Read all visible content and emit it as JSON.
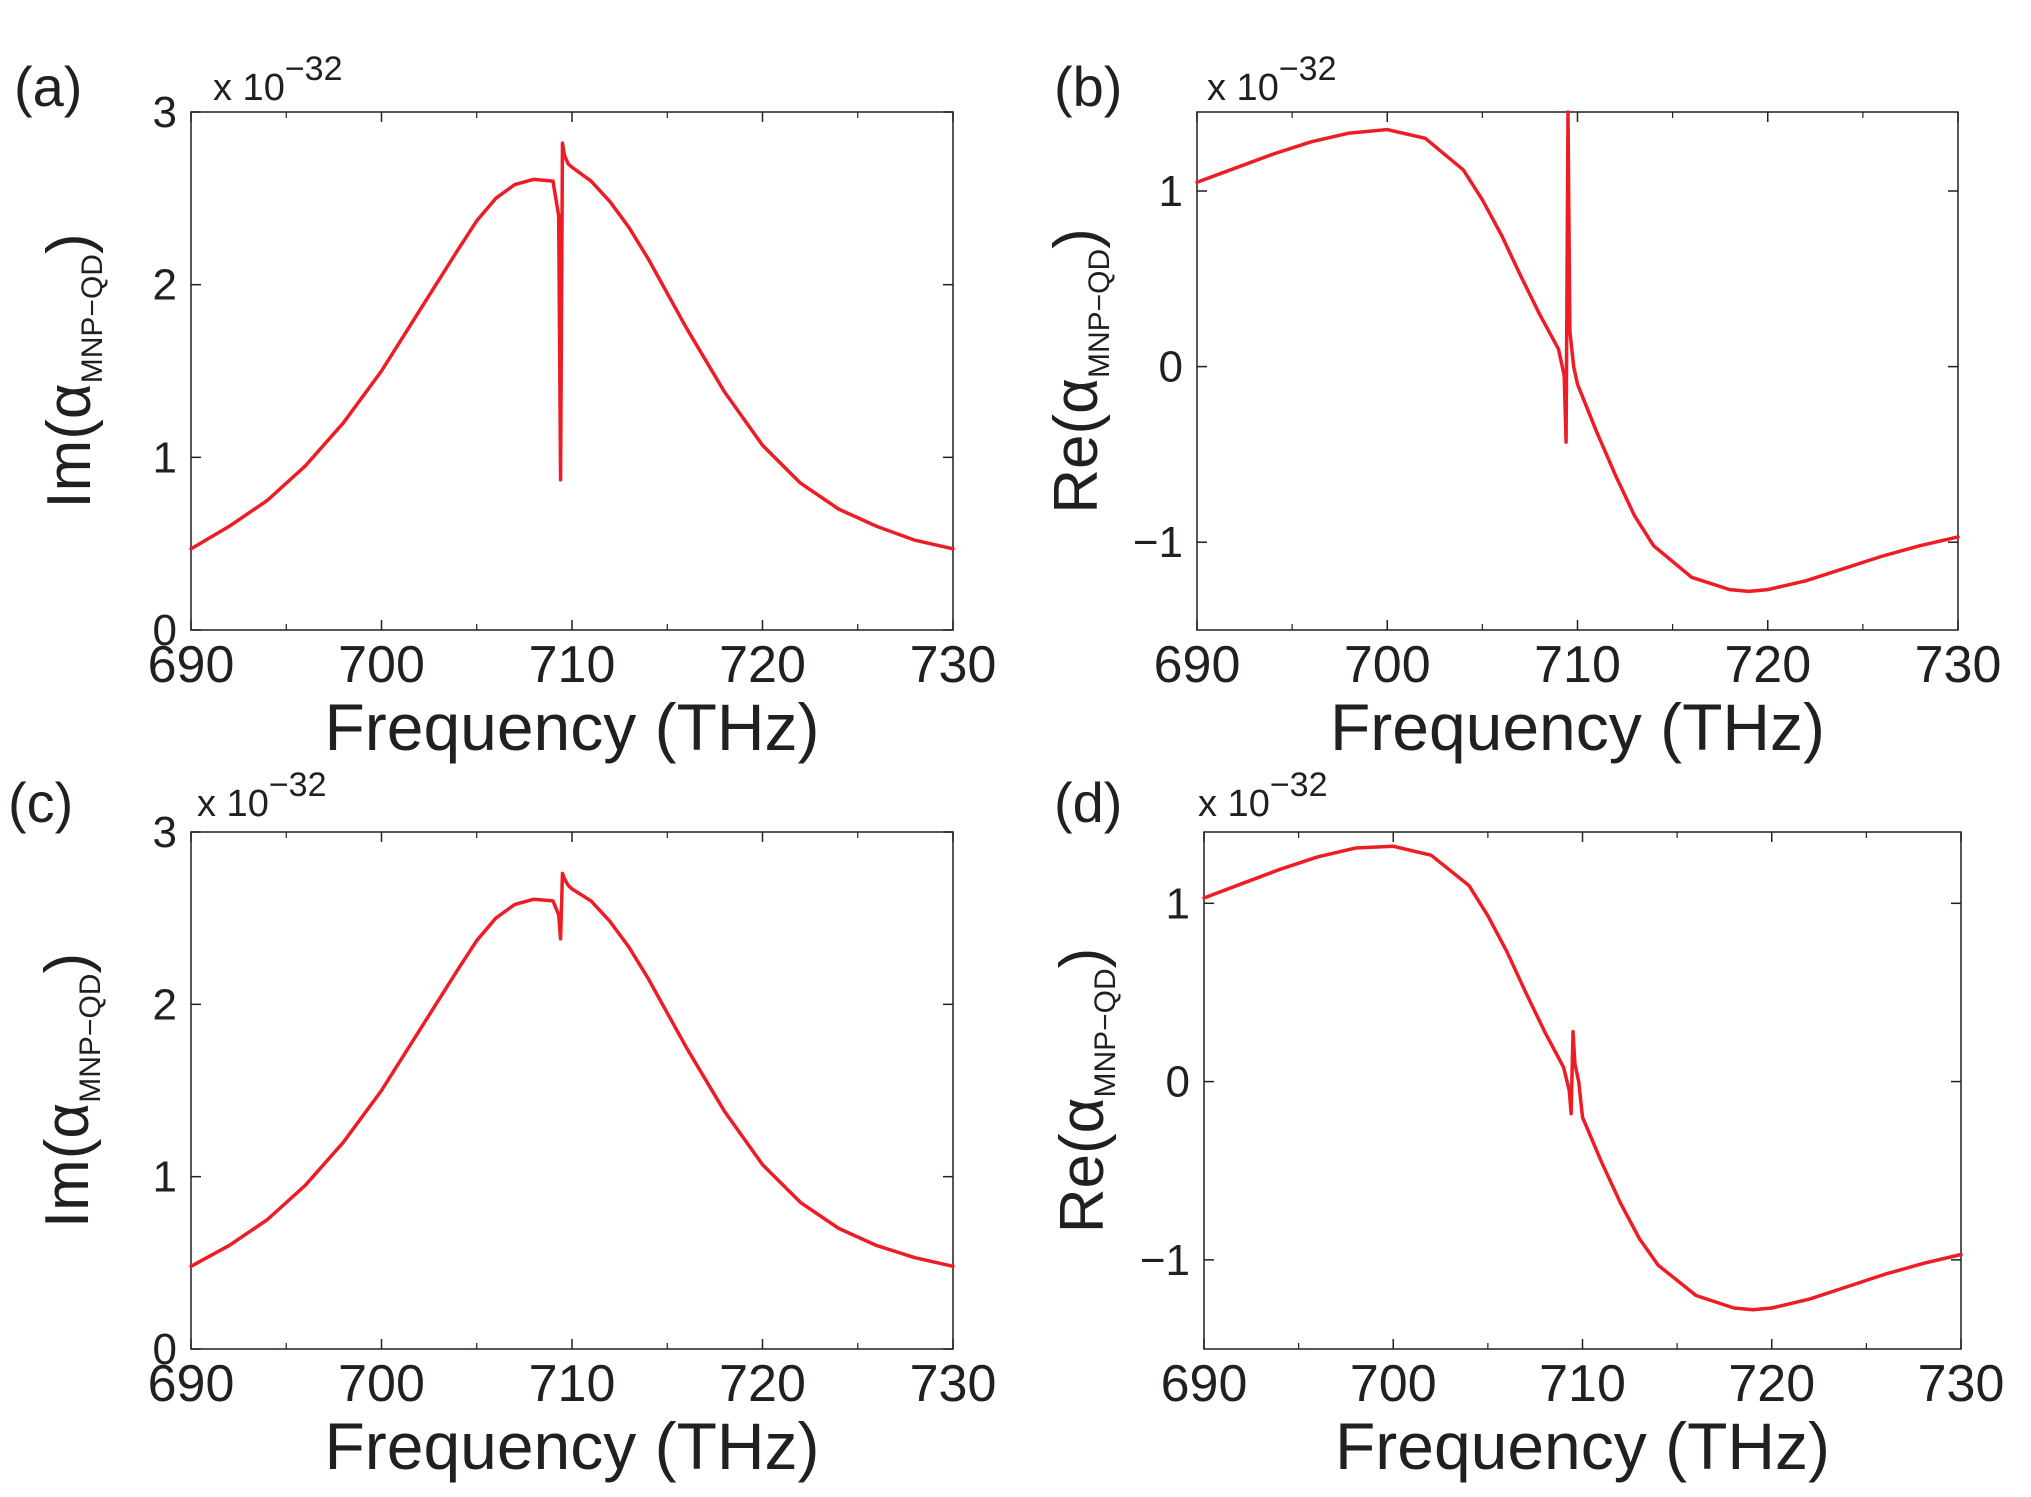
{
  "figure": {
    "line_color": "#ee1c25",
    "axis_color": "#231f20"
  },
  "chart_data": [
    {
      "type": "line",
      "panel_label": "(a)",
      "multiplier": {
        "base": "x 10",
        "exponent": "−32"
      },
      "xlabel": "Frequency (THz)",
      "ylabel": {
        "prefix": "Im(",
        "symbol": "α",
        "subscript": "MNP−QD",
        "suffix": ")"
      },
      "xlim": [
        690,
        730
      ],
      "ylim": [
        0,
        3
      ],
      "xticks": [
        690,
        700,
        710,
        720,
        730
      ],
      "yticks": [
        0,
        1,
        2,
        3
      ],
      "xtick_labels": [
        "690",
        "700",
        "710",
        "720",
        "730"
      ],
      "ytick_labels": [
        "0",
        "1",
        "2",
        "3"
      ],
      "grid": false,
      "series": [
        {
          "x": [
            690,
            692,
            694,
            696,
            698,
            700,
            702,
            704,
            705,
            706,
            707,
            708,
            709,
            709.3,
            709.4,
            709.5,
            709.6,
            709.8,
            710,
            711,
            712,
            713,
            714,
            716,
            718,
            720,
            722,
            724,
            726,
            728,
            730
          ],
          "y": [
            0.47,
            0.6,
            0.75,
            0.95,
            1.2,
            1.5,
            1.85,
            2.2,
            2.37,
            2.5,
            2.58,
            2.61,
            2.6,
            2.4,
            0.87,
            2.82,
            2.75,
            2.7,
            2.68,
            2.6,
            2.48,
            2.33,
            2.15,
            1.75,
            1.38,
            1.07,
            0.85,
            0.7,
            0.6,
            0.52,
            0.47
          ]
        }
      ]
    },
    {
      "type": "line",
      "panel_label": "(b)",
      "multiplier": {
        "base": "x 10",
        "exponent": "−32"
      },
      "xlabel": "Frequency (THz)",
      "ylabel": {
        "prefix": "Re(",
        "symbol": "α",
        "subscript": "MNP−QD",
        "suffix": ")"
      },
      "xlim": [
        690,
        730
      ],
      "ylim": [
        -1.5,
        1.45
      ],
      "xticks": [
        690,
        700,
        710,
        720,
        730
      ],
      "yticks": [
        -1,
        0,
        1
      ],
      "xtick_labels": [
        "690",
        "700",
        "710",
        "720",
        "730"
      ],
      "ytick_labels": [
        "−1",
        "0",
        "1"
      ],
      "grid": false,
      "series": [
        {
          "x": [
            690,
            692,
            694,
            696,
            698,
            700,
            702,
            704,
            705,
            706,
            707,
            708,
            709,
            709.3,
            709.4,
            709.5,
            709.6,
            709.8,
            710,
            711,
            712,
            713,
            714,
            716,
            718,
            719,
            720,
            722,
            724,
            726,
            728,
            730
          ],
          "y": [
            1.05,
            1.13,
            1.21,
            1.28,
            1.33,
            1.35,
            1.3,
            1.12,
            0.95,
            0.75,
            0.52,
            0.3,
            0.1,
            -0.05,
            -0.43,
            1.45,
            0.2,
            0.0,
            -0.1,
            -0.37,
            -0.62,
            -0.85,
            -1.02,
            -1.2,
            -1.27,
            -1.28,
            -1.27,
            -1.22,
            -1.15,
            -1.08,
            -1.02,
            -0.97
          ]
        }
      ]
    },
    {
      "type": "line",
      "panel_label": "(c)",
      "multiplier": {
        "base": "x 10",
        "exponent": "−32"
      },
      "xlabel": "Frequency (THz)",
      "ylabel": {
        "prefix": "Im(",
        "symbol": "α",
        "subscript": "MNP−QD",
        "suffix": ")"
      },
      "xlim": [
        690,
        730
      ],
      "ylim": [
        0,
        3
      ],
      "xticks": [
        690,
        700,
        710,
        720,
        730
      ],
      "yticks": [
        0,
        1,
        2,
        3
      ],
      "xtick_labels": [
        "690",
        "700",
        "710",
        "720",
        "730"
      ],
      "ytick_labels": [
        "0",
        "1",
        "2",
        "3"
      ],
      "grid": false,
      "series": [
        {
          "x": [
            690,
            692,
            694,
            696,
            698,
            700,
            702,
            704,
            705,
            706,
            707,
            708,
            709,
            709.3,
            709.4,
            709.5,
            709.6,
            709.8,
            710,
            711,
            712,
            713,
            714,
            716,
            718,
            720,
            722,
            724,
            726,
            728,
            730
          ],
          "y": [
            0.48,
            0.6,
            0.75,
            0.95,
            1.2,
            1.5,
            1.85,
            2.2,
            2.37,
            2.5,
            2.58,
            2.61,
            2.6,
            2.52,
            2.38,
            2.76,
            2.73,
            2.69,
            2.67,
            2.6,
            2.48,
            2.33,
            2.15,
            1.75,
            1.38,
            1.07,
            0.85,
            0.7,
            0.6,
            0.53,
            0.48
          ]
        }
      ]
    },
    {
      "type": "line",
      "panel_label": "(d)",
      "multiplier": {
        "base": "x 10",
        "exponent": "−32"
      },
      "xlabel": "Frequency (THz)",
      "ylabel": {
        "prefix": "Re(",
        "symbol": "α",
        "subscript": "MNP−QD",
        "suffix": ")"
      },
      "xlim": [
        690,
        730
      ],
      "ylim": [
        -1.5,
        1.4
      ],
      "xticks": [
        690,
        700,
        710,
        720,
        730
      ],
      "yticks": [
        -1,
        0,
        1
      ],
      "xtick_labels": [
        "690",
        "700",
        "710",
        "720",
        "730"
      ],
      "ytick_labels": [
        "−1",
        "0",
        "1"
      ],
      "grid": false,
      "series": [
        {
          "x": [
            690,
            692,
            694,
            696,
            698,
            700,
            702,
            704,
            705,
            706,
            707,
            708,
            709,
            709.3,
            709.4,
            709.5,
            709.6,
            709.8,
            710,
            711,
            712,
            713,
            714,
            716,
            718,
            719,
            720,
            722,
            724,
            726,
            728,
            730
          ],
          "y": [
            1.03,
            1.11,
            1.19,
            1.26,
            1.31,
            1.32,
            1.27,
            1.1,
            0.93,
            0.73,
            0.5,
            0.28,
            0.08,
            -0.05,
            -0.18,
            0.28,
            0.1,
            0.0,
            -0.2,
            -0.45,
            -0.68,
            -0.88,
            -1.03,
            -1.2,
            -1.27,
            -1.28,
            -1.27,
            -1.22,
            -1.15,
            -1.08,
            -1.02,
            -0.97
          ]
        }
      ]
    }
  ]
}
